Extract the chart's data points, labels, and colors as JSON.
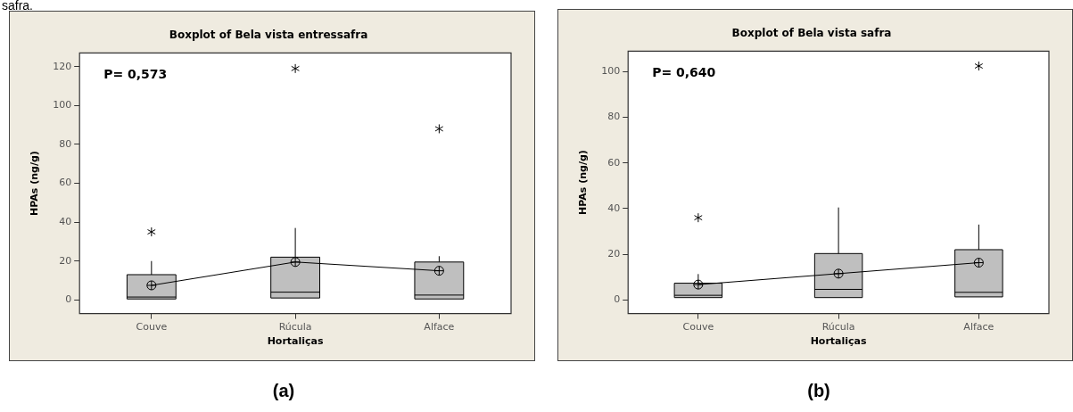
{
  "chart_data": [
    {
      "type": "box",
      "title": "Boxplot of Bela vista entressafra",
      "xlabel": "Hortaliças",
      "ylabel": "HPAs (ng/g)",
      "categories": [
        "Couve",
        "Rúcula",
        "Alface"
      ],
      "ylim": [
        -7,
        127
      ],
      "yticks": [
        0,
        20,
        40,
        60,
        80,
        100,
        120
      ],
      "annotations": [
        "P= 0,573",
        "(a)",
        "safra."
      ],
      "series": [
        {
          "color": "#bfbfbf",
          "boxes": [
            {
              "low": 0.5,
              "q1": 0.5,
              "median": 1.5,
              "q3": 13,
              "high": 20,
              "mean": 7.5,
              "outliers": [
                35
              ]
            },
            {
              "low": 1,
              "q1": 1,
              "median": 4,
              "q3": 22,
              "high": 37,
              "mean": 19.5,
              "outliers": [
                119
              ]
            },
            {
              "low": 0.5,
              "q1": 0.5,
              "median": 2.5,
              "q3": 19.5,
              "high": 22.5,
              "mean": 15,
              "outliers": [
                88
              ]
            }
          ]
        },
        {
          "type": "line",
          "color": "#000000",
          "values": [
            7.5,
            19.5,
            15
          ]
        }
      ]
    },
    {
      "type": "box",
      "title": "Boxplot of Bela vista safra",
      "xlabel": "Hortaliças",
      "ylabel": "HPAs (ng/g)",
      "categories": [
        "Couve",
        "Rúcula",
        "Alface"
      ],
      "ylim": [
        -6,
        109
      ],
      "yticks": [
        0,
        20,
        40,
        60,
        80,
        100
      ],
      "annotations": [
        "P= 0,640",
        "(b)"
      ],
      "series": [
        {
          "color": "#bfbfbf",
          "boxes": [
            {
              "low": 1,
              "q1": 1,
              "median": 2,
              "q3": 7.3,
              "high": 11.3,
              "mean": 6.7,
              "outliers": [
                36
              ]
            },
            {
              "low": 1,
              "q1": 1,
              "median": 4.6,
              "q3": 20.3,
              "high": 40.5,
              "mean": 11.5
            },
            {
              "low": 1.3,
              "q1": 1.3,
              "median": 3.3,
              "q3": 22,
              "high": 33,
              "mean": 16.3,
              "outliers": [
                102.5
              ]
            }
          ]
        },
        {
          "type": "line",
          "color": "#000000",
          "values": [
            6.7,
            11.5,
            16.3
          ]
        }
      ]
    }
  ]
}
